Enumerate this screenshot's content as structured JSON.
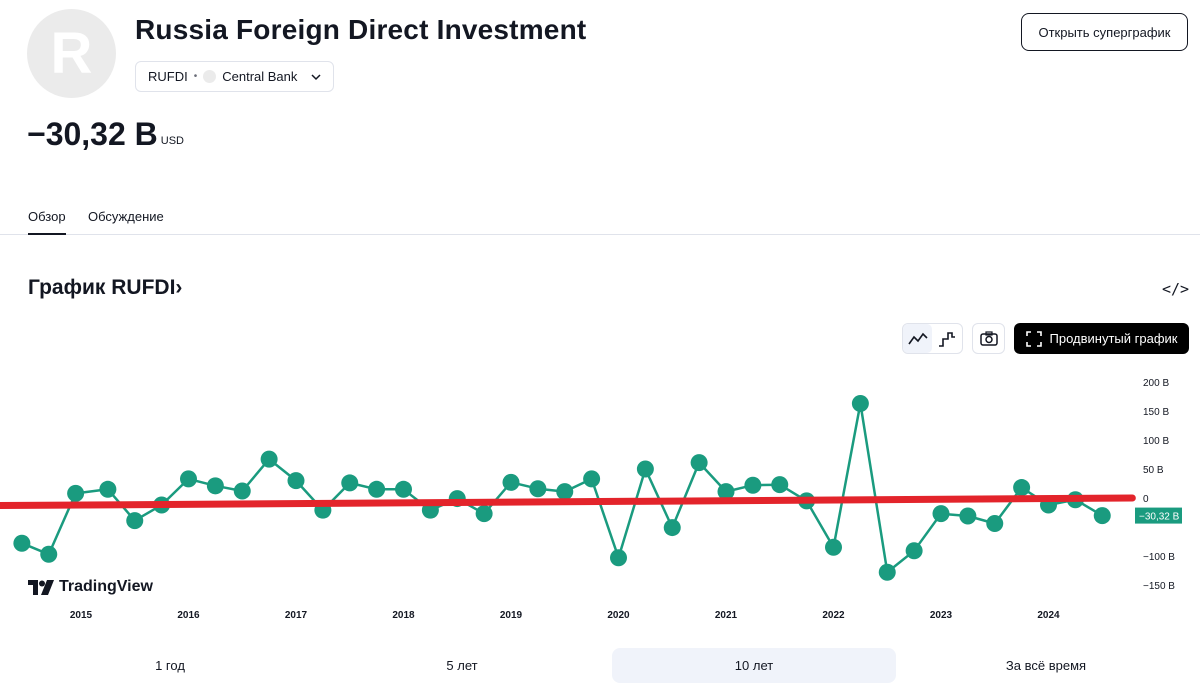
{
  "header": {
    "logo_letter": "R",
    "title": "Russia Foreign Direct Investment",
    "symbol": "RUFDI",
    "separator": "•",
    "source": "Central Bank",
    "open_button": "Открыть суперграфик"
  },
  "value": {
    "main": "−30,32 B",
    "unit": "USD"
  },
  "tabs": [
    {
      "label": "Обзор"
    },
    {
      "label": "Обсуждение"
    }
  ],
  "chart_section": {
    "title": "График RUFDI",
    "title_chevron": "›",
    "embed_icon": "</>",
    "advanced_button": "Продвинутый график",
    "icons": {
      "line": "line-chart-icon",
      "step": "step-chart-icon",
      "camera": "camera-icon",
      "fullscreen": "fullscreen-icon"
    }
  },
  "branding": "TradingView",
  "ranges": [
    {
      "label": "1 год"
    },
    {
      "label": "5 лет"
    },
    {
      "label": "10 лет"
    },
    {
      "label": "За всё время"
    }
  ],
  "colors": {
    "series": "#1a9b7f",
    "trend": "#e3242b",
    "text": "#131722",
    "badge": "#1a9b7f"
  },
  "chart_data": {
    "type": "line",
    "title": "График RUFDI",
    "unit": "USD",
    "ylim": [
      -170,
      205
    ],
    "y_ticks": [
      200,
      150,
      100,
      50,
      0,
      -100,
      -150
    ],
    "y_tick_labels": [
      "200 B",
      "150 B",
      "100 B",
      "50 B",
      "0",
      "−100 B",
      "−150 B"
    ],
    "x_ticks": [
      2015,
      2016,
      2017,
      2018,
      2019,
      2020,
      2021,
      2022,
      2023,
      2024
    ],
    "x_tick_labels": [
      "2015",
      "2016",
      "2017",
      "2018",
      "2019",
      "2020",
      "2021",
      "2022",
      "2023",
      "2024"
    ],
    "last_value_label": "−30,32 B",
    "series": [
      {
        "name": "RUFDI",
        "x": [
          2014.45,
          2014.7,
          2014.95,
          2015.25,
          2015.5,
          2015.75,
          2016.0,
          2016.25,
          2016.5,
          2016.75,
          2017.0,
          2017.25,
          2017.5,
          2017.75,
          2018.0,
          2018.25,
          2018.5,
          2018.75,
          2019.0,
          2019.25,
          2019.5,
          2019.75,
          2020.0,
          2020.25,
          2020.5,
          2020.75,
          2021.0,
          2021.25,
          2021.5,
          2021.75,
          2022.0,
          2022.25,
          2022.5,
          2022.75,
          2023.0,
          2023.25,
          2023.5,
          2023.75,
          2024.0,
          2024.25,
          2024.5
        ],
        "values": [
          -78,
          -97,
          8,
          15,
          -39,
          -12,
          33,
          21,
          12,
          67,
          30,
          -21,
          26,
          15,
          15,
          -21,
          -1,
          -27,
          27,
          16,
          11,
          33,
          -103,
          50,
          -51,
          61,
          11,
          22,
          23,
          -5,
          -85,
          163,
          -128,
          -91,
          -27,
          -31,
          -44,
          18,
          -12,
          -3,
          -30.32
        ]
      }
    ],
    "trendline": {
      "name": "trend",
      "x": [
        2014.25,
        2024.78
      ],
      "values": [
        -13,
        0
      ]
    }
  }
}
